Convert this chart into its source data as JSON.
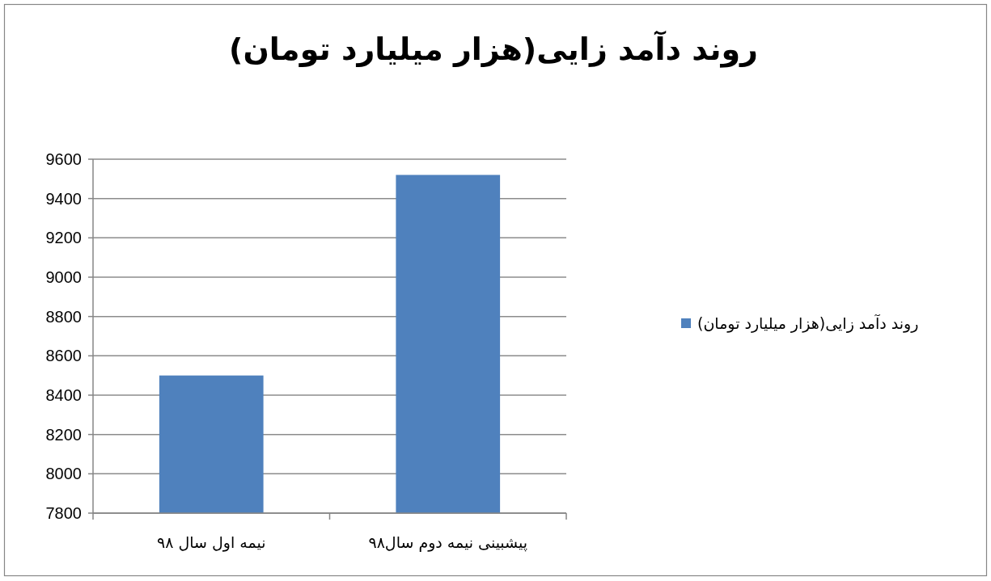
{
  "chart_data": {
    "type": "bar",
    "title": "روند دآمد زایی(هزار میلیارد تومان)",
    "categories": [
      "نیمه اول سال ۹۸",
      "پیشبینی نیمه دوم سال۹۸"
    ],
    "series": [
      {
        "name": "روند دآمد زایی(هزار میلیارد تومان)",
        "color": "#4f81bd",
        "values": [
          8500,
          9520
        ]
      }
    ],
    "ylim": [
      7800,
      9600
    ],
    "yticks": [
      7800,
      8000,
      8200,
      8400,
      8600,
      8800,
      9000,
      9200,
      9400,
      9600
    ],
    "grid": "y",
    "legend": "right"
  }
}
